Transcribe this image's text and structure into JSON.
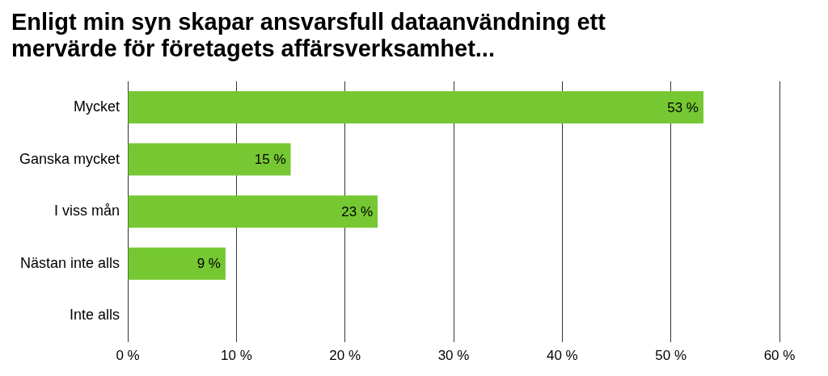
{
  "chart_data": {
    "type": "bar",
    "orientation": "horizontal",
    "title": [
      "Enligt min syn skapar ansvarsfull dataanvändning ett",
      "mervärde för företagets affärsverksamhet..."
    ],
    "categories": [
      "Mycket",
      "Ganska mycket",
      "I viss mån",
      "Nästan inte alls",
      "Inte alls"
    ],
    "values": [
      53,
      15,
      23,
      9,
      null
    ],
    "value_labels": [
      "53 %",
      "15 %",
      "23 %",
      "9 %",
      null
    ],
    "data_labels": true,
    "color": "#76c832",
    "xlim": [
      0,
      60
    ],
    "xticks": [
      {
        "value": 0,
        "label": "0 %"
      },
      {
        "value": 10,
        "label": "10 %"
      },
      {
        "value": 20,
        "label": "20 %"
      },
      {
        "value": 30,
        "label": "30 %"
      },
      {
        "value": 40,
        "label": "40 %"
      },
      {
        "value": 50,
        "label": "50 %"
      },
      {
        "value": 60,
        "label": "60 %"
      }
    ],
    "grid": true
  }
}
